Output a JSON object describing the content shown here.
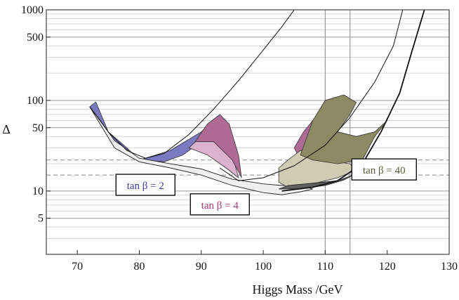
{
  "chart_data": {
    "type": "line",
    "title": "",
    "xlabel": "Higgs Mass /GeV",
    "ylabel": "Δ",
    "xlim": [
      65,
      130
    ],
    "ylim": [
      2,
      1000
    ],
    "yscale": "log",
    "x_ticks": [
      70,
      80,
      90,
      100,
      110,
      120,
      130
    ],
    "y_ticks": [
      5,
      10,
      50,
      100,
      500,
      1000
    ],
    "y_tick_labels": [
      "5",
      "10",
      "50",
      "100",
      "500",
      "1000"
    ],
    "grid": "horizontal log grid",
    "reference_vertical_lines": [
      110,
      114
    ],
    "reference_dashed_lines": [
      22,
      15
    ],
    "colors": {
      "tan2": "#7a7ac2",
      "tan4": "#b06a96",
      "tan4_light": "#dcb2cf",
      "tan40": "#8c8a62",
      "tan40_light": "#cfccb4",
      "white_band": "#efefef",
      "dark_band": "#606060"
    },
    "series": [
      {
        "name": "tan β = 2",
        "label": "tan β = 2",
        "label_color": "#3a3a9a",
        "boundary_curve": [
          [
            72,
            85
          ],
          [
            75,
            45
          ],
          [
            78,
            28
          ],
          [
            81,
            23
          ],
          [
            84,
            26
          ],
          [
            88,
            42
          ],
          [
            92,
            80
          ],
          [
            96,
            165
          ],
          [
            100,
            360
          ],
          [
            103,
            650
          ],
          [
            105,
            1000
          ]
        ],
        "region_lower": [
          [
            72,
            85
          ],
          [
            76,
            32
          ],
          [
            80,
            22
          ],
          [
            84,
            21
          ],
          [
            87,
            25
          ],
          [
            90,
            35
          ],
          [
            92,
            50
          ]
        ],
        "region_upper": [
          [
            73,
            96
          ],
          [
            75,
            45
          ],
          [
            78,
            30
          ],
          [
            80,
            22
          ],
          [
            85,
            28
          ],
          [
            90,
            45
          ],
          [
            92,
            60
          ]
        ]
      },
      {
        "name": "tan β = 4",
        "label": "tan β = 4",
        "label_color": "#a03a78",
        "boundary_curve": [
          [
            93,
            18
          ],
          [
            96,
            13
          ],
          [
            100,
            14
          ],
          [
            105,
            19
          ],
          [
            110,
            32
          ],
          [
            114,
            65
          ],
          [
            118,
            160
          ],
          [
            121,
            400
          ],
          [
            122.5,
            1000
          ]
        ],
        "region_lower": [
          [
            80,
            22
          ],
          [
            85,
            19
          ],
          [
            90,
            16
          ],
          [
            95,
            12
          ],
          [
            100,
            10
          ],
          [
            103,
            9.5
          ]
        ],
        "region_upper": [
          [
            89,
            35
          ],
          [
            91,
            55
          ],
          [
            93,
            70
          ],
          [
            94.5,
            55
          ],
          [
            96,
            25
          ],
          [
            96.5,
            14
          ]
        ]
      },
      {
        "name": "tan β = 40",
        "label": "tan β = 40",
        "label_color": "#5a5a3a",
        "boundary_curve": [
          [
            103,
            10
          ],
          [
            108,
            11
          ],
          [
            112,
            13
          ],
          [
            116,
            20
          ],
          [
            119,
            45
          ],
          [
            122,
            120
          ],
          [
            124,
            350
          ],
          [
            126,
            1000
          ]
        ],
        "region_lower": [
          [
            102.5,
            10.5
          ],
          [
            107,
            11
          ],
          [
            110,
            11
          ],
          [
            113,
            13
          ],
          [
            115,
            17
          ]
        ],
        "region_upper": [
          [
            106,
            25
          ],
          [
            108,
            60
          ],
          [
            110,
            100
          ],
          [
            113,
            115
          ],
          [
            115,
            95
          ],
          [
            114,
            70
          ],
          [
            112,
            45
          ],
          [
            115,
            40
          ],
          [
            118,
            45
          ],
          [
            120,
            60
          ]
        ]
      }
    ],
    "annotations": [
      {
        "text": "tan β = 2",
        "series": "tan β = 2"
      },
      {
        "text": "tan β = 4",
        "series": "tan β = 4"
      },
      {
        "text": "tan β = 40",
        "series": "tan β = 40"
      }
    ]
  }
}
